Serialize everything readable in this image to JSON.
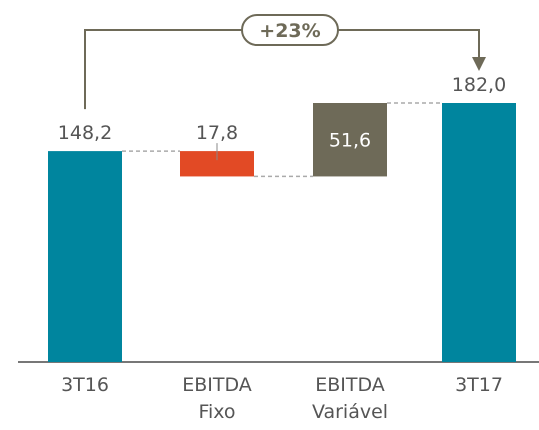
{
  "chart_data": {
    "type": "waterfall",
    "categories": [
      "3T16",
      "EBITDA Fixo",
      "EBITDA Variável",
      "3T17"
    ],
    "values": [
      148.2,
      -17.8,
      51.6,
      182.0
    ],
    "value_labels": [
      "148,2",
      "17,8",
      "51,6",
      "182,0"
    ],
    "colors": [
      "#00859e",
      "#e24a25",
      "#6e6a58",
      "#00859e"
    ],
    "annotation": "+23%"
  }
}
